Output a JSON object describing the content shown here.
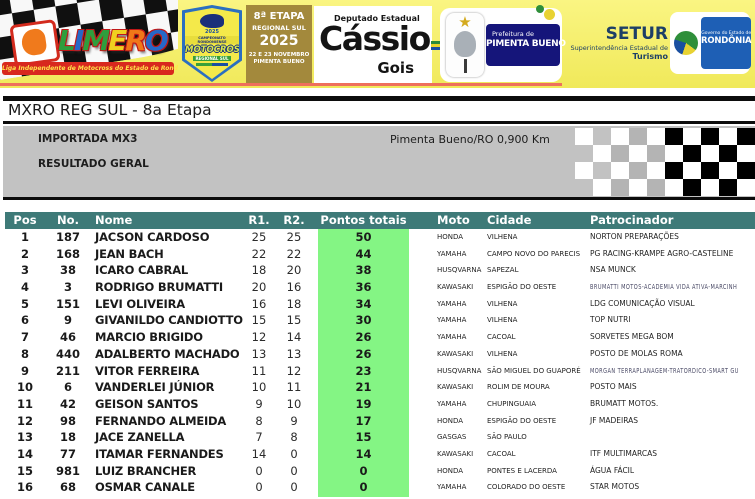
{
  "banner": {
    "limero": {
      "letters": [
        {
          "ch": "L",
          "color": "#2f9e3d"
        },
        {
          "ch": "I",
          "color": "#2668c8"
        },
        {
          "ch": "M",
          "color": "#2f9e3d"
        },
        {
          "ch": "E",
          "color": "#f0d020"
        },
        {
          "ch": "R",
          "color": "#f07818"
        },
        {
          "ch": "O",
          "color": "#2668c8"
        }
      ],
      "tagline": "Liga Independente de Motocross do Estado de Rondônia"
    },
    "badge": {
      "year": "2025",
      "line1": "CAMPEONATO RONDONIENSE",
      "line2": "MOTOCROSS",
      "line3": "REGIONAL SUL"
    },
    "etapa": {
      "line1": "8ª ETAPA",
      "line2": "REGIONAL SUL",
      "line3": "2025",
      "line4": "22 E 23 NOVEMBRO",
      "line5": "PIMENTA BUENO"
    },
    "deputado": {
      "title": "Deputado Estadual",
      "first": "Cássio",
      "last": "Gois"
    },
    "prefeitura": {
      "line1": "Prefeitura de",
      "line2": "PIMENTA BUENO"
    },
    "setur": {
      "name": "SETUR",
      "line1": "Superintendência Estadual de",
      "line2": "Turismo"
    },
    "governo": {
      "line1": "Governo do Estado de",
      "line2": "RONDÔNIA"
    }
  },
  "page": {
    "title": "MXRO REG SUL - 8a Etapa"
  },
  "info": {
    "category": "IMPORTADA MX3",
    "location": "Pimenta Bueno/RO 0,900 Km",
    "result_type": "RESULTADO GERAL"
  },
  "table": {
    "headers": [
      "Pos",
      "No.",
      "Nome",
      "R1.",
      "R2.",
      "Pontos totais",
      "Moto",
      "Cidade",
      "Patrocinador"
    ],
    "rows": [
      {
        "pos": "1",
        "no": "187",
        "nome": "JACSON CARDOSO",
        "r1": "25",
        "r2": "25",
        "total": "50",
        "moto": "HONDA",
        "cidade": "VILHENA",
        "patrocinador": "NORTON PREPARAÇÕES"
      },
      {
        "pos": "2",
        "no": "168",
        "nome": "JEAN BACH",
        "r1": "22",
        "r2": "22",
        "total": "44",
        "moto": "YAMAHA",
        "cidade": "CAMPO NOVO DO PARECIS",
        "patrocinador": "PG RACING-KRAMPE AGRO-CASTELINE"
      },
      {
        "pos": "3",
        "no": "38",
        "nome": "ICARO CABRAL",
        "r1": "18",
        "r2": "20",
        "total": "38",
        "moto": "HUSQVARNA",
        "cidade": "SAPEZAL",
        "patrocinador": "NSA MUNCK"
      },
      {
        "pos": "4",
        "no": "3",
        "nome": "RODRIGO BRUMATTI",
        "r1": "20",
        "r2": "16",
        "total": "36",
        "moto": "KAWASAKI",
        "cidade": "ESPIGÃO DO OESTE",
        "patrocinador": "BRUMATTI MOTOS-ACADEMIA VIDA ATIVA-MARCINH",
        "condensed": true
      },
      {
        "pos": "5",
        "no": "151",
        "nome": "LEVI OLIVEIRA",
        "r1": "16",
        "r2": "18",
        "total": "34",
        "moto": "YAMAHA",
        "cidade": "VILHENA",
        "patrocinador": "LDG COMUNICAÇÃO VISUAL"
      },
      {
        "pos": "6",
        "no": "9",
        "nome": "GIVANILDO CANDIOTTO",
        "r1": "15",
        "r2": "15",
        "total": "30",
        "moto": "YAMAHA",
        "cidade": "VILHENA",
        "patrocinador": "TOP NUTRI"
      },
      {
        "pos": "7",
        "no": "46",
        "nome": "MARCIO BRIGIDO",
        "r1": "12",
        "r2": "14",
        "total": "26",
        "moto": "YAMAHA",
        "cidade": "CACOAL",
        "patrocinador": "SORVETES MEGA BOM"
      },
      {
        "pos": "8",
        "no": "440",
        "nome": "ADALBERTO MACHADO",
        "r1": "13",
        "r2": "13",
        "total": "26",
        "moto": "KAWASAKI",
        "cidade": "VILHENA",
        "patrocinador": "POSTO DE MOLAS ROMA"
      },
      {
        "pos": "9",
        "no": "211",
        "nome": "VITOR FERREIRA",
        "r1": "11",
        "r2": "12",
        "total": "23",
        "moto": "HUSQVARNA",
        "cidade": "SÃO MIGUEL DO GUAPORÉ",
        "patrocinador": "MORGAN TERRAPLANAGEM-TRATORDICO-SMART GU",
        "condensed": true
      },
      {
        "pos": "10",
        "no": "6",
        "nome": "VANDERLEI JÚNIOR",
        "r1": "10",
        "r2": "11",
        "total": "21",
        "moto": "KAWASAKI",
        "cidade": "ROLIM DE MOURA",
        "patrocinador": "POSTO MAIS"
      },
      {
        "pos": "11",
        "no": "42",
        "nome": "GEISON SANTOS",
        "r1": "9",
        "r2": "10",
        "total": "19",
        "moto": "YAMAHA",
        "cidade": "CHUPINGUAIA",
        "patrocinador": "BRUMATT MOTOS."
      },
      {
        "pos": "12",
        "no": "98",
        "nome": "FERNANDO ALMEIDA",
        "r1": "8",
        "r2": "9",
        "total": "17",
        "moto": "HONDA",
        "cidade": "ESPIGÃO DO OESTE",
        "patrocinador": "JF MADEIRAS"
      },
      {
        "pos": "13",
        "no": "18",
        "nome": "JACE ZANELLA",
        "r1": "7",
        "r2": "8",
        "total": "15",
        "moto": "GASGAS",
        "cidade": "SÃO PAULO",
        "patrocinador": ""
      },
      {
        "pos": "14",
        "no": "77",
        "nome": "ITAMAR FERNANDES",
        "r1": "14",
        "r2": "0",
        "total": "14",
        "moto": "KAWASAKI",
        "cidade": "CACOAL",
        "patrocinador": "ITF MULTIMARCAS"
      },
      {
        "pos": "15",
        "no": "981",
        "nome": "LUIZ BRANCHER",
        "r1": "0",
        "r2": "0",
        "total": "0",
        "moto": "HONDA",
        "cidade": "PONTES E LACERDA",
        "patrocinador": "ÁGUA FÁCIL"
      },
      {
        "pos": "16",
        "no": "68",
        "nome": "OSMAR CANALE",
        "r1": "0",
        "r2": "0",
        "total": "0",
        "moto": "YAMAHA",
        "cidade": "COLORADO DO OESTE",
        "patrocinador": "STAR MOTOS"
      }
    ]
  },
  "colors": {
    "header_teal": "#3e7a78",
    "points_green": "#84f584",
    "panel_gray": "#c2c2c2",
    "banner_yellow": "#f2ec5e",
    "prefeitura_navy": "#15157a",
    "governo_blue": "#1e5fb5",
    "limero_red": "#d8281e"
  }
}
